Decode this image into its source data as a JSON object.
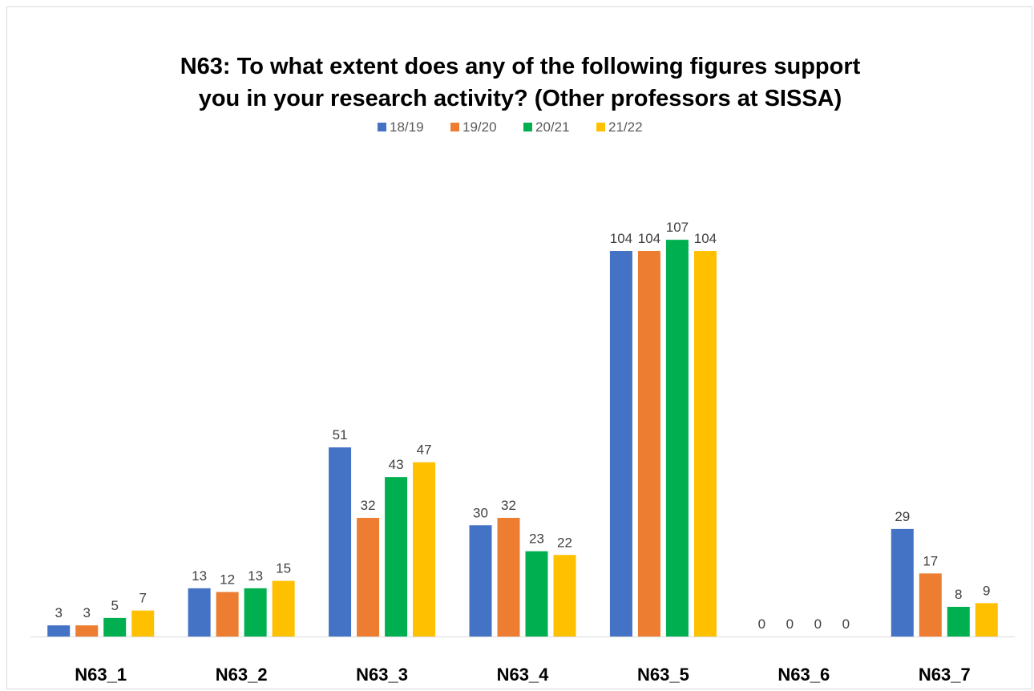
{
  "chart_data": {
    "type": "bar",
    "title_lines": [
      "N63: To what extent does any of the following figures support",
      "you in your research activity? (Other professors at SISSA)"
    ],
    "categories": [
      "N63_1",
      "N63_2",
      "N63_3",
      "N63_4",
      "N63_5",
      "N63_6",
      "N63_7"
    ],
    "series": [
      {
        "name": "18/19",
        "color": "#4472C4",
        "values": [
          3,
          13,
          51,
          30,
          104,
          0,
          29
        ]
      },
      {
        "name": "19/20",
        "color": "#ED7D31",
        "values": [
          3,
          12,
          32,
          32,
          104,
          0,
          17
        ]
      },
      {
        "name": "20/21",
        "color": "#00B050",
        "values": [
          5,
          13,
          43,
          23,
          107,
          0,
          8
        ]
      },
      {
        "name": "21/22",
        "color": "#FFC000",
        "values": [
          7,
          15,
          47,
          22,
          104,
          0,
          9
        ]
      }
    ],
    "ylim": [
      0,
      110
    ],
    "legend_position": "top",
    "grid": false,
    "data_labels": true
  }
}
